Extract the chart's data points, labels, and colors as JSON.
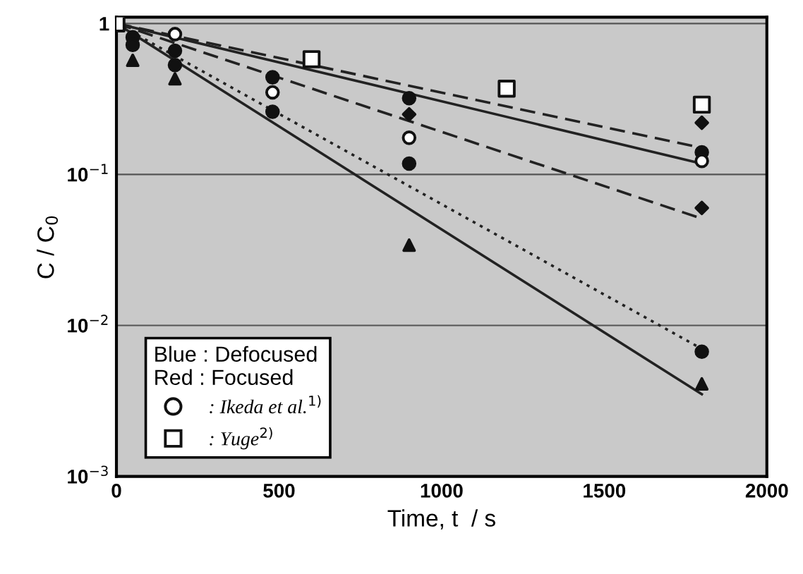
{
  "chart_data": {
    "type": "line",
    "xlabel": "Time, t  / s",
    "ylabel": "C / C$_{0}$",
    "log": "y",
    "xlim": [
      0,
      2000
    ],
    "ylim": [
      0.001,
      1.1
    ],
    "xticks": [
      0,
      500,
      1000,
      1500,
      2000
    ],
    "yticks": [
      {
        "value": 0.001,
        "label": "10$^{−3}$"
      },
      {
        "value": 0.01,
        "label": "10$^{−2}$"
      },
      {
        "value": 0.1,
        "label": "10$^{−1}$"
      },
      {
        "value": 1,
        "label": "1"
      }
    ],
    "grid": "y",
    "legend": "bottom left",
    "legend_title": "Blue : Defocused\nRed : Focused",
    "series": [
      {
        "line_style": "solid",
        "color": "#222222",
        "x": [
          0,
          1800
        ],
        "values": [
          1,
          0.118
        ]
      },
      {
        "line_style": "dashed",
        "color": "#222222",
        "x": [
          0,
          1800
        ],
        "values": [
          1,
          0.15
        ]
      },
      {
        "line_style": "dashed",
        "color": "#222222",
        "x": [
          0,
          1800
        ],
        "values": [
          1,
          0.051
        ]
      },
      {
        "line_style": "dotted",
        "color": "#222222",
        "x": [
          0,
          1800
        ],
        "values": [
          1,
          0.007
        ]
      },
      {
        "line_style": "solid",
        "color": "#222222",
        "x": [
          0,
          1800
        ],
        "values": [
          1,
          0.0035
        ]
      },
      {
        "type": "scatter",
        "marker": "circle",
        "color": "#111111",
        "x": [
          50,
          180,
          480,
          900,
          1800
        ],
        "values": [
          0.81,
          0.66,
          0.44,
          0.32,
          0.14
        ]
      },
      {
        "type": "scatter",
        "marker": "circle",
        "color": "#111111",
        "x": [
          50,
          180,
          480,
          900,
          1800
        ],
        "values": [
          0.72,
          0.53,
          0.26,
          0.118,
          0.0067
        ]
      },
      {
        "type": "scatter",
        "marker": "diamond",
        "color": "#111111",
        "x": [
          900,
          1800,
          1800
        ],
        "values": [
          0.25,
          0.22,
          0.06
        ]
      },
      {
        "type": "scatter",
        "marker": "triangle",
        "color": "#111111",
        "x": [
          50,
          180,
          900,
          1800
        ],
        "values": [
          0.57,
          0.43,
          0.034,
          0.0041
        ]
      },
      {
        "type": "scatter",
        "marker": "circle",
        "name": ": Ikeda et al.$^{1)}$",
        "color": "#111111",
        "x": [
          180,
          480,
          900,
          1800
        ],
        "values": [
          0.85,
          0.35,
          0.175,
          0.123
        ]
      },
      {
        "type": "scatter",
        "marker": "square",
        "name": ": Yuge$^{2)}$",
        "color": "#111111",
        "x": [
          0,
          600,
          1200,
          1800
        ],
        "values": [
          1,
          0.58,
          0.37,
          0.29
        ]
      }
    ]
  }
}
